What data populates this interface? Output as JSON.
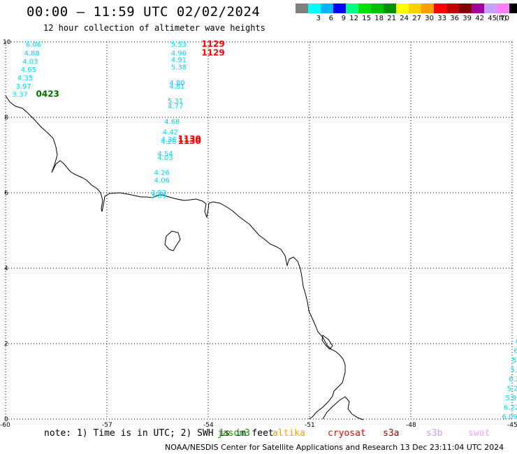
{
  "header": {
    "title": "00:00 – 11:59 UTC 02/02/2024",
    "subtitle": "12 hour collection of altimeter wave heights"
  },
  "legend": {
    "unit": "(ft)",
    "entries": [
      {
        "label": "",
        "color": "#808080"
      },
      {
        "label": "3",
        "color": "#00ffff"
      },
      {
        "label": "6",
        "color": "#00b4ff"
      },
      {
        "label": "9",
        "color": "#0000ff"
      },
      {
        "label": "12",
        "color": "#00ff80"
      },
      {
        "label": "15",
        "color": "#00e000"
      },
      {
        "label": "18",
        "color": "#00c000"
      },
      {
        "label": "21",
        "color": "#009000"
      },
      {
        "label": "24",
        "color": "#ffff00"
      },
      {
        "label": "27",
        "color": "#ffd000"
      },
      {
        "label": "30",
        "color": "#ffa000"
      },
      {
        "label": "33",
        "color": "#ff0000"
      },
      {
        "label": "36",
        "color": "#c00000"
      },
      {
        "label": "39",
        "color": "#800000"
      },
      {
        "label": "42",
        "color": "#a000a0"
      },
      {
        "label": "45",
        "color": "#c8a0ff"
      },
      {
        "label": "70",
        "color": "#ff80ff"
      },
      {
        "label": "",
        "color": "#000000"
      }
    ]
  },
  "map": {
    "lon_labels": [
      "-60",
      "-57",
      "-54",
      "-51",
      "-48",
      "-45"
    ],
    "lat_labels": [
      "0",
      "2",
      "4",
      "6",
      "8",
      "10"
    ],
    "observation_color": "#00d8ff",
    "observations": [
      {
        "lon": -59.4,
        "lat": 9.87,
        "value": "6.06"
      },
      {
        "lon": -59.45,
        "lat": 9.64,
        "value": "4.88"
      },
      {
        "lon": -59.5,
        "lat": 9.42,
        "value": "4.03"
      },
      {
        "lon": -59.55,
        "lat": 9.2,
        "value": "4.65"
      },
      {
        "lon": -59.65,
        "lat": 8.98,
        "value": "4.35"
      },
      {
        "lon": -59.7,
        "lat": 8.76,
        "value": "3.97"
      },
      {
        "lon": -59.8,
        "lat": 8.55,
        "value": "3.37"
      },
      {
        "lon": -55.1,
        "lat": 9.87,
        "value": "5.53"
      },
      {
        "lon": -55.1,
        "lat": 9.64,
        "value": "4.96"
      },
      {
        "lon": -55.1,
        "lat": 9.46,
        "value": "4.91"
      },
      {
        "lon": -55.1,
        "lat": 9.27,
        "value": "5.38"
      },
      {
        "lon": -55.15,
        "lat": 8.85,
        "value": "4.80"
      },
      {
        "lon": -55.15,
        "lat": 8.76,
        "value": "4.81"
      },
      {
        "lon": -55.2,
        "lat": 8.37,
        "value": "5.31"
      },
      {
        "lon": -55.2,
        "lat": 8.23,
        "value": "4.77"
      },
      {
        "lon": -55.3,
        "lat": 7.82,
        "value": "4.68"
      },
      {
        "lon": -55.35,
        "lat": 7.55,
        "value": "4.42"
      },
      {
        "lon": -55.4,
        "lat": 7.35,
        "value": "4.26"
      },
      {
        "lon": -55.4,
        "lat": 7.3,
        "value": "4.28"
      },
      {
        "lon": -55.5,
        "lat": 6.97,
        "value": "4.54"
      },
      {
        "lon": -55.5,
        "lat": 6.87,
        "value": "4.03"
      },
      {
        "lon": -55.6,
        "lat": 6.47,
        "value": "4.26"
      },
      {
        "lon": -55.6,
        "lat": 6.27,
        "value": "4.06"
      },
      {
        "lon": -55.7,
        "lat": 5.94,
        "value": "3.92"
      },
      {
        "lon": -55.7,
        "lat": 5.86,
        "value": "3.89"
      },
      {
        "lon": -44.85,
        "lat": 3.0,
        "value": "6"
      },
      {
        "lon": -44.85,
        "lat": 2.75,
        "value": "6"
      },
      {
        "lon": -44.85,
        "lat": 2.5,
        "value": "6"
      },
      {
        "lon": -44.85,
        "lat": 2.25,
        "value": "6"
      },
      {
        "lon": -44.9,
        "lat": 2.0,
        "value": "6.4"
      },
      {
        "lon": -44.95,
        "lat": 1.75,
        "value": "6.3"
      },
      {
        "lon": -45.0,
        "lat": 1.5,
        "value": "5.8"
      },
      {
        "lon": -45.05,
        "lat": 1.25,
        "value": "5.9"
      },
      {
        "lon": -45.1,
        "lat": 1.0,
        "value": "6.2"
      },
      {
        "lon": -45.15,
        "lat": 0.75,
        "value": "5.24"
      },
      {
        "lon": -45.2,
        "lat": 0.5,
        "value": "5.98"
      },
      {
        "lon": -45.25,
        "lat": 0.25,
        "value": "6.22"
      },
      {
        "lon": -45.3,
        "lat": 0.0,
        "value": "6.09"
      }
    ],
    "passes": [
      {
        "lon": -59.1,
        "lat": 8.55,
        "label": "0423",
        "color": "#007000"
      },
      {
        "lon": -54.2,
        "lat": 9.87,
        "label": "1129",
        "color": "#ff0000"
      },
      {
        "lon": -54.2,
        "lat": 9.64,
        "label": "1129",
        "color": "#ff0000"
      },
      {
        "lon": -54.9,
        "lat": 7.35,
        "label": "1130",
        "color": "#ff0000"
      },
      {
        "lon": -54.9,
        "lat": 7.3,
        "label": "1130",
        "color": "#ff0000"
      }
    ]
  },
  "note": "note: 1) Time is in UTC; 2) SWH is in feet",
  "satellites": [
    {
      "name": "jason3",
      "color": "#00a000"
    },
    {
      "name": "altika",
      "color": "#ffa000"
    },
    {
      "name": "cryosat",
      "color": "#ff0000"
    },
    {
      "name": "s3a",
      "color": "#a00000"
    },
    {
      "name": "s3b",
      "color": "#c8a0ff"
    },
    {
      "name": "swot",
      "color": "#ffa0ff"
    }
  ],
  "footer": "NOAA/NESDIS Center for Satellite Applications and Research   13 Dec 23:11:04 UTC 2024"
}
